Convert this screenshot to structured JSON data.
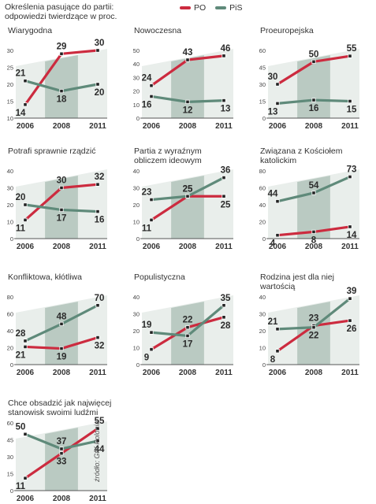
{
  "header": {
    "description_line1": "Określenia pasujące do partii:",
    "description_line2": "odpowiedzi twierdzące w proc.",
    "legend": [
      {
        "name": "PO",
        "color": "#cc2b3f"
      },
      {
        "name": "PiS",
        "color": "#5f8a7a"
      }
    ]
  },
  "source": "źródło: GfK Polonia",
  "colors": {
    "PO": "#cc2b3f",
    "PiS": "#5f8a7a",
    "panel_light": "#e9eeeb",
    "panel_dark": "#a9bdb4"
  },
  "chart_data": [
    {
      "type": "line",
      "title": [
        "Wiarygodna"
      ],
      "x": [
        "2006",
        "2008",
        "2011"
      ],
      "ylim": [
        10,
        30
      ],
      "yticks": [
        10,
        15,
        20,
        25,
        30
      ],
      "series": [
        {
          "name": "PO",
          "values": [
            14,
            29,
            30
          ]
        },
        {
          "name": "PiS",
          "values": [
            21,
            18,
            20
          ]
        }
      ]
    },
    {
      "type": "line",
      "title": [
        "Nowoczesna"
      ],
      "x": [
        "2006",
        "2008",
        "2011"
      ],
      "ylim": [
        0,
        50
      ],
      "yticks": [
        0,
        10,
        20,
        30,
        40,
        50
      ],
      "series": [
        {
          "name": "PO",
          "values": [
            24,
            43,
            46
          ]
        },
        {
          "name": "PiS",
          "values": [
            16,
            12,
            13
          ]
        }
      ]
    },
    {
      "type": "line",
      "title": [
        "Proeuropejska"
      ],
      "x": [
        "2006",
        "2008",
        "2011"
      ],
      "ylim": [
        0,
        60
      ],
      "yticks": [
        0,
        15,
        30,
        45,
        60
      ],
      "series": [
        {
          "name": "PO",
          "values": [
            30,
            50,
            55
          ]
        },
        {
          "name": "PiS",
          "values": [
            13,
            16,
            15
          ]
        }
      ]
    },
    {
      "type": "line",
      "title": [
        "Potrafi sprawnie rządzić"
      ],
      "x": [
        "2006",
        "2008",
        "2011"
      ],
      "ylim": [
        0,
        40
      ],
      "yticks": [
        0,
        10,
        20,
        30,
        40
      ],
      "series": [
        {
          "name": "PO",
          "values": [
            11,
            30,
            32
          ]
        },
        {
          "name": "PiS",
          "values": [
            20,
            17,
            16
          ]
        }
      ]
    },
    {
      "type": "line",
      "title": [
        "Partia z wyraźnym",
        "obliczem ideowym"
      ],
      "x": [
        "2006",
        "2008",
        "2011"
      ],
      "ylim": [
        0,
        40
      ],
      "yticks": [
        0,
        10,
        20,
        30,
        40
      ],
      "series": [
        {
          "name": "PO",
          "values": [
            11,
            25,
            25
          ]
        },
        {
          "name": "PiS",
          "values": [
            23,
            25,
            36
          ]
        }
      ]
    },
    {
      "type": "line",
      "title": [
        "Związana z Kościołem",
        "katolickim"
      ],
      "x": [
        "2006",
        "2008",
        "2011"
      ],
      "ylim": [
        0,
        80
      ],
      "yticks": [
        0,
        20,
        40,
        60,
        80
      ],
      "series": [
        {
          "name": "PO",
          "values": [
            4,
            8,
            14
          ]
        },
        {
          "name": "PiS",
          "values": [
            44,
            54,
            73
          ]
        }
      ]
    },
    {
      "type": "line",
      "title": [
        "Konfliktowa, kłótliwa"
      ],
      "x": [
        "2006",
        "2008",
        "2011"
      ],
      "ylim": [
        0,
        80
      ],
      "yticks": [
        0,
        20,
        40,
        60,
        80
      ],
      "series": [
        {
          "name": "PO",
          "values": [
            21,
            19,
            32
          ]
        },
        {
          "name": "PiS",
          "values": [
            28,
            48,
            70
          ]
        }
      ]
    },
    {
      "type": "line",
      "title": [
        "Populistyczna"
      ],
      "x": [
        "2006",
        "2008",
        "2011"
      ],
      "ylim": [
        0,
        40
      ],
      "yticks": [
        0,
        10,
        20,
        30,
        40
      ],
      "series": [
        {
          "name": "PO",
          "values": [
            9,
            22,
            28
          ]
        },
        {
          "name": "PiS",
          "values": [
            19,
            17,
            35
          ]
        }
      ]
    },
    {
      "type": "line",
      "title": [
        "Rodzina jest dla niej",
        "wartością"
      ],
      "x": [
        "2006",
        "2008",
        "2011"
      ],
      "ylim": [
        0,
        40
      ],
      "yticks": [
        0,
        10,
        20,
        30,
        40
      ],
      "series": [
        {
          "name": "PO",
          "values": [
            8,
            23,
            26
          ]
        },
        {
          "name": "PiS",
          "values": [
            21,
            22,
            39
          ]
        }
      ]
    },
    {
      "type": "line",
      "title": [
        "Chce obsadzić jak najwięcej",
        "stanowisk swoimi ludźmi"
      ],
      "x": [
        "2006",
        "2008",
        "2011"
      ],
      "ylim": [
        0,
        60
      ],
      "yticks": [
        0,
        15,
        30,
        45,
        60
      ],
      "series": [
        {
          "name": "PO",
          "values": [
            11,
            33,
            55
          ]
        },
        {
          "name": "PiS",
          "values": [
            50,
            37,
            44
          ]
        }
      ]
    }
  ]
}
